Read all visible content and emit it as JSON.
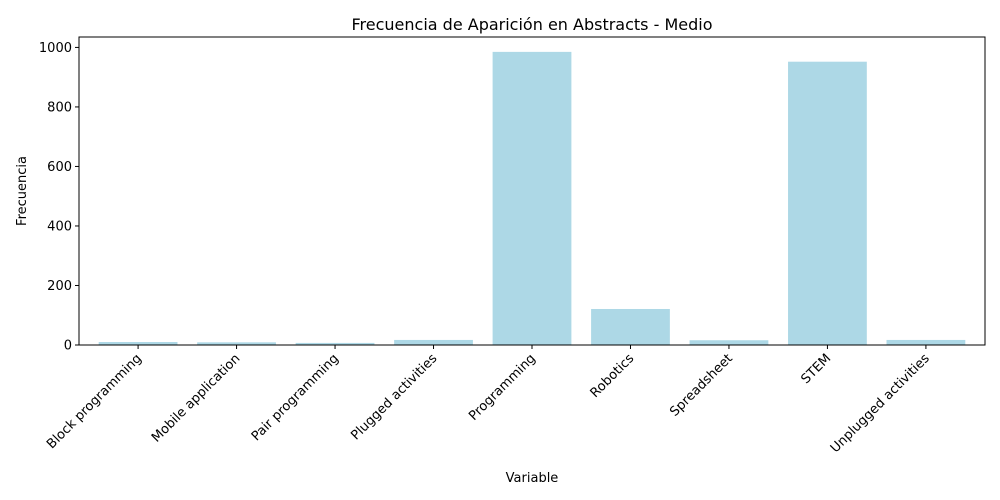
{
  "chart_data": {
    "type": "bar",
    "title": "Frecuencia de Aparición en Abstracts - Medio",
    "xlabel": "Variable",
    "ylabel": "Frecuencia",
    "categories": [
      "Block programming",
      "Mobile application",
      "Pair programming",
      "Plugged activities",
      "Programming",
      "Robotics",
      "Spreadsheet",
      "STEM",
      "Unplugged activities"
    ],
    "values": [
      10,
      9,
      7,
      17,
      985,
      121,
      16,
      952,
      17
    ],
    "ylim": [
      0,
      1035
    ],
    "yticks": [
      0,
      200,
      400,
      600,
      800,
      1000
    ],
    "grid": false,
    "bar_color": "#add8e6"
  }
}
